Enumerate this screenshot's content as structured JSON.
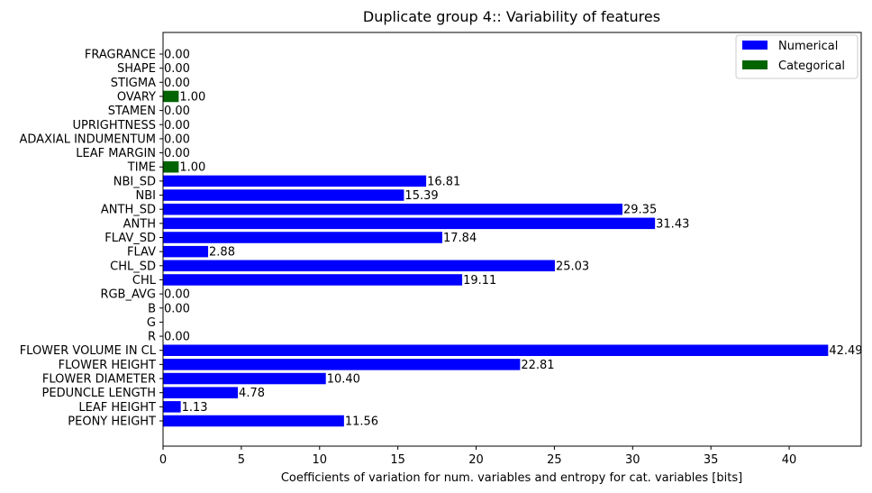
{
  "chart_data": {
    "type": "bar",
    "orientation": "horizontal",
    "title": "Duplicate group 4:: Variability of features",
    "xlabel": "Coefficients of variation for num. variables and entropy for cat. variables [bits]",
    "ylabel": "",
    "xlim": [
      0,
      44.6
    ],
    "xticks": [
      0,
      5,
      10,
      15,
      20,
      25,
      30,
      35,
      40
    ],
    "grid": false,
    "legend_position": "top-right",
    "series": [
      {
        "name": "Numerical",
        "color": "#0000ff"
      },
      {
        "name": "Categorical",
        "color": "#006400"
      }
    ],
    "bars": [
      {
        "label": "PEONY HEIGHT",
        "value": 11.56,
        "value_label": "11.56",
        "series": "Numerical"
      },
      {
        "label": "LEAF HEIGHT",
        "value": 1.13,
        "value_label": "1.13",
        "series": "Numerical"
      },
      {
        "label": "PEDUNCLE LENGTH",
        "value": 4.78,
        "value_label": "4.78",
        "series": "Numerical"
      },
      {
        "label": "FLOWER DIAMETER",
        "value": 10.4,
        "value_label": "10.40",
        "series": "Numerical"
      },
      {
        "label": "FLOWER HEIGHT",
        "value": 22.81,
        "value_label": "22.81",
        "series": "Numerical"
      },
      {
        "label": "FLOWER VOLUME IN CL",
        "value": 42.49,
        "value_label": "42.49",
        "series": "Numerical"
      },
      {
        "label": "R",
        "value": 0.0,
        "value_label": "0.00",
        "series": "Numerical"
      },
      {
        "label": "G",
        "value": 0,
        "value_label": "",
        "series": "Numerical"
      },
      {
        "label": "B",
        "value": 0.0,
        "value_label": "0.00",
        "series": "Numerical"
      },
      {
        "label": "RGB_AVG",
        "value": 0.0,
        "value_label": "0.00",
        "series": "Numerical"
      },
      {
        "label": "CHL",
        "value": 19.11,
        "value_label": "19.11",
        "series": "Numerical"
      },
      {
        "label": "CHL_SD",
        "value": 25.03,
        "value_label": "25.03",
        "series": "Numerical"
      },
      {
        "label": "FLAV",
        "value": 2.88,
        "value_label": "2.88",
        "series": "Numerical"
      },
      {
        "label": "FLAV_SD",
        "value": 17.84,
        "value_label": "17.84",
        "series": "Numerical"
      },
      {
        "label": "ANTH",
        "value": 31.43,
        "value_label": "31.43",
        "series": "Numerical"
      },
      {
        "label": "ANTH_SD",
        "value": 29.35,
        "value_label": "29.35",
        "series": "Numerical"
      },
      {
        "label": "NBI",
        "value": 15.39,
        "value_label": "15.39",
        "series": "Numerical"
      },
      {
        "label": "NBI_SD",
        "value": 16.81,
        "value_label": "16.81",
        "series": "Numerical"
      },
      {
        "label": "TIME",
        "value": 1.0,
        "value_label": "1.00",
        "series": "Categorical"
      },
      {
        "label": "LEAF MARGIN",
        "value": 0.0,
        "value_label": "0.00",
        "series": "Categorical"
      },
      {
        "label": "ADAXIAL INDUMENTUM",
        "value": 0.0,
        "value_label": "0.00",
        "series": "Categorical"
      },
      {
        "label": "UPRIGHTNESS",
        "value": 0.0,
        "value_label": "0.00",
        "series": "Categorical"
      },
      {
        "label": "STAMEN",
        "value": 0.0,
        "value_label": "0.00",
        "series": "Categorical"
      },
      {
        "label": "OVARY",
        "value": 1.0,
        "value_label": "1.00",
        "series": "Categorical"
      },
      {
        "label": "STIGMA",
        "value": 0.0,
        "value_label": "0.00",
        "series": "Categorical"
      },
      {
        "label": "SHAPE",
        "value": 0.0,
        "value_label": "0.00",
        "series": "Categorical"
      },
      {
        "label": "FRAGRANCE",
        "value": 0.0,
        "value_label": "0.00",
        "series": "Categorical"
      }
    ]
  }
}
